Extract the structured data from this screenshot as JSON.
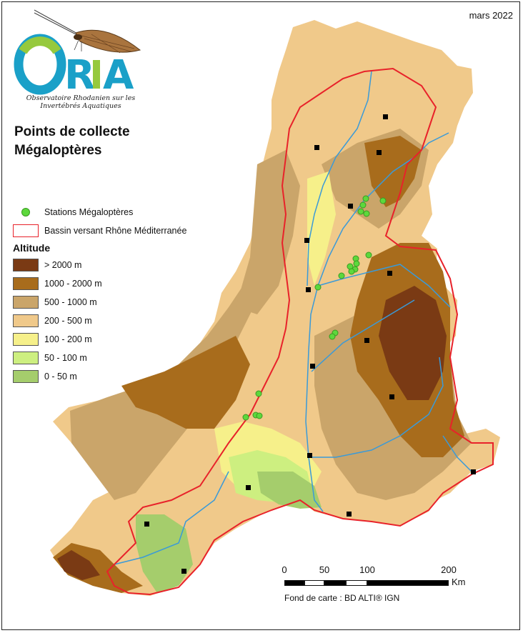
{
  "date": "mars 2022",
  "logo": {
    "name": "ORIA",
    "subtitle_line1": "Observatoire Rhodanien sur les",
    "subtitle_line2": "Invertébrés Aquatiques"
  },
  "title_line1": "Points de collecte",
  "title_line2": "Mégaloptères",
  "legend": {
    "stations": "Stations Mégaloptères",
    "basin": "Bassin versant Rhône Méditerranée",
    "altitude_title": "Altitude",
    "classes": [
      {
        "label": "> 2000 m",
        "color": "#7a3a14"
      },
      {
        "label": "1000 - 2000 m",
        "color": "#a86c1c"
      },
      {
        "label": "500 - 1000 m",
        "color": "#caa56a"
      },
      {
        "label": "200 - 500 m",
        "color": "#f0c98a"
      },
      {
        "label": "100 - 200 m",
        "color": "#f6f08a"
      },
      {
        "label": "50 - 100 m",
        "color": "#cdef80"
      },
      {
        "label": "0 - 50 m",
        "color": "#a5cd6c"
      }
    ]
  },
  "colors": {
    "station": "#5dd83c",
    "basin_outline": "#e8222a",
    "river": "#3a9ad8",
    "city": "#000000"
  },
  "scale": {
    "labels": [
      "0",
      "50",
      "100",
      "200"
    ],
    "unit": "Km"
  },
  "credit": "Fond de carte : BD ALTI® IGN"
}
